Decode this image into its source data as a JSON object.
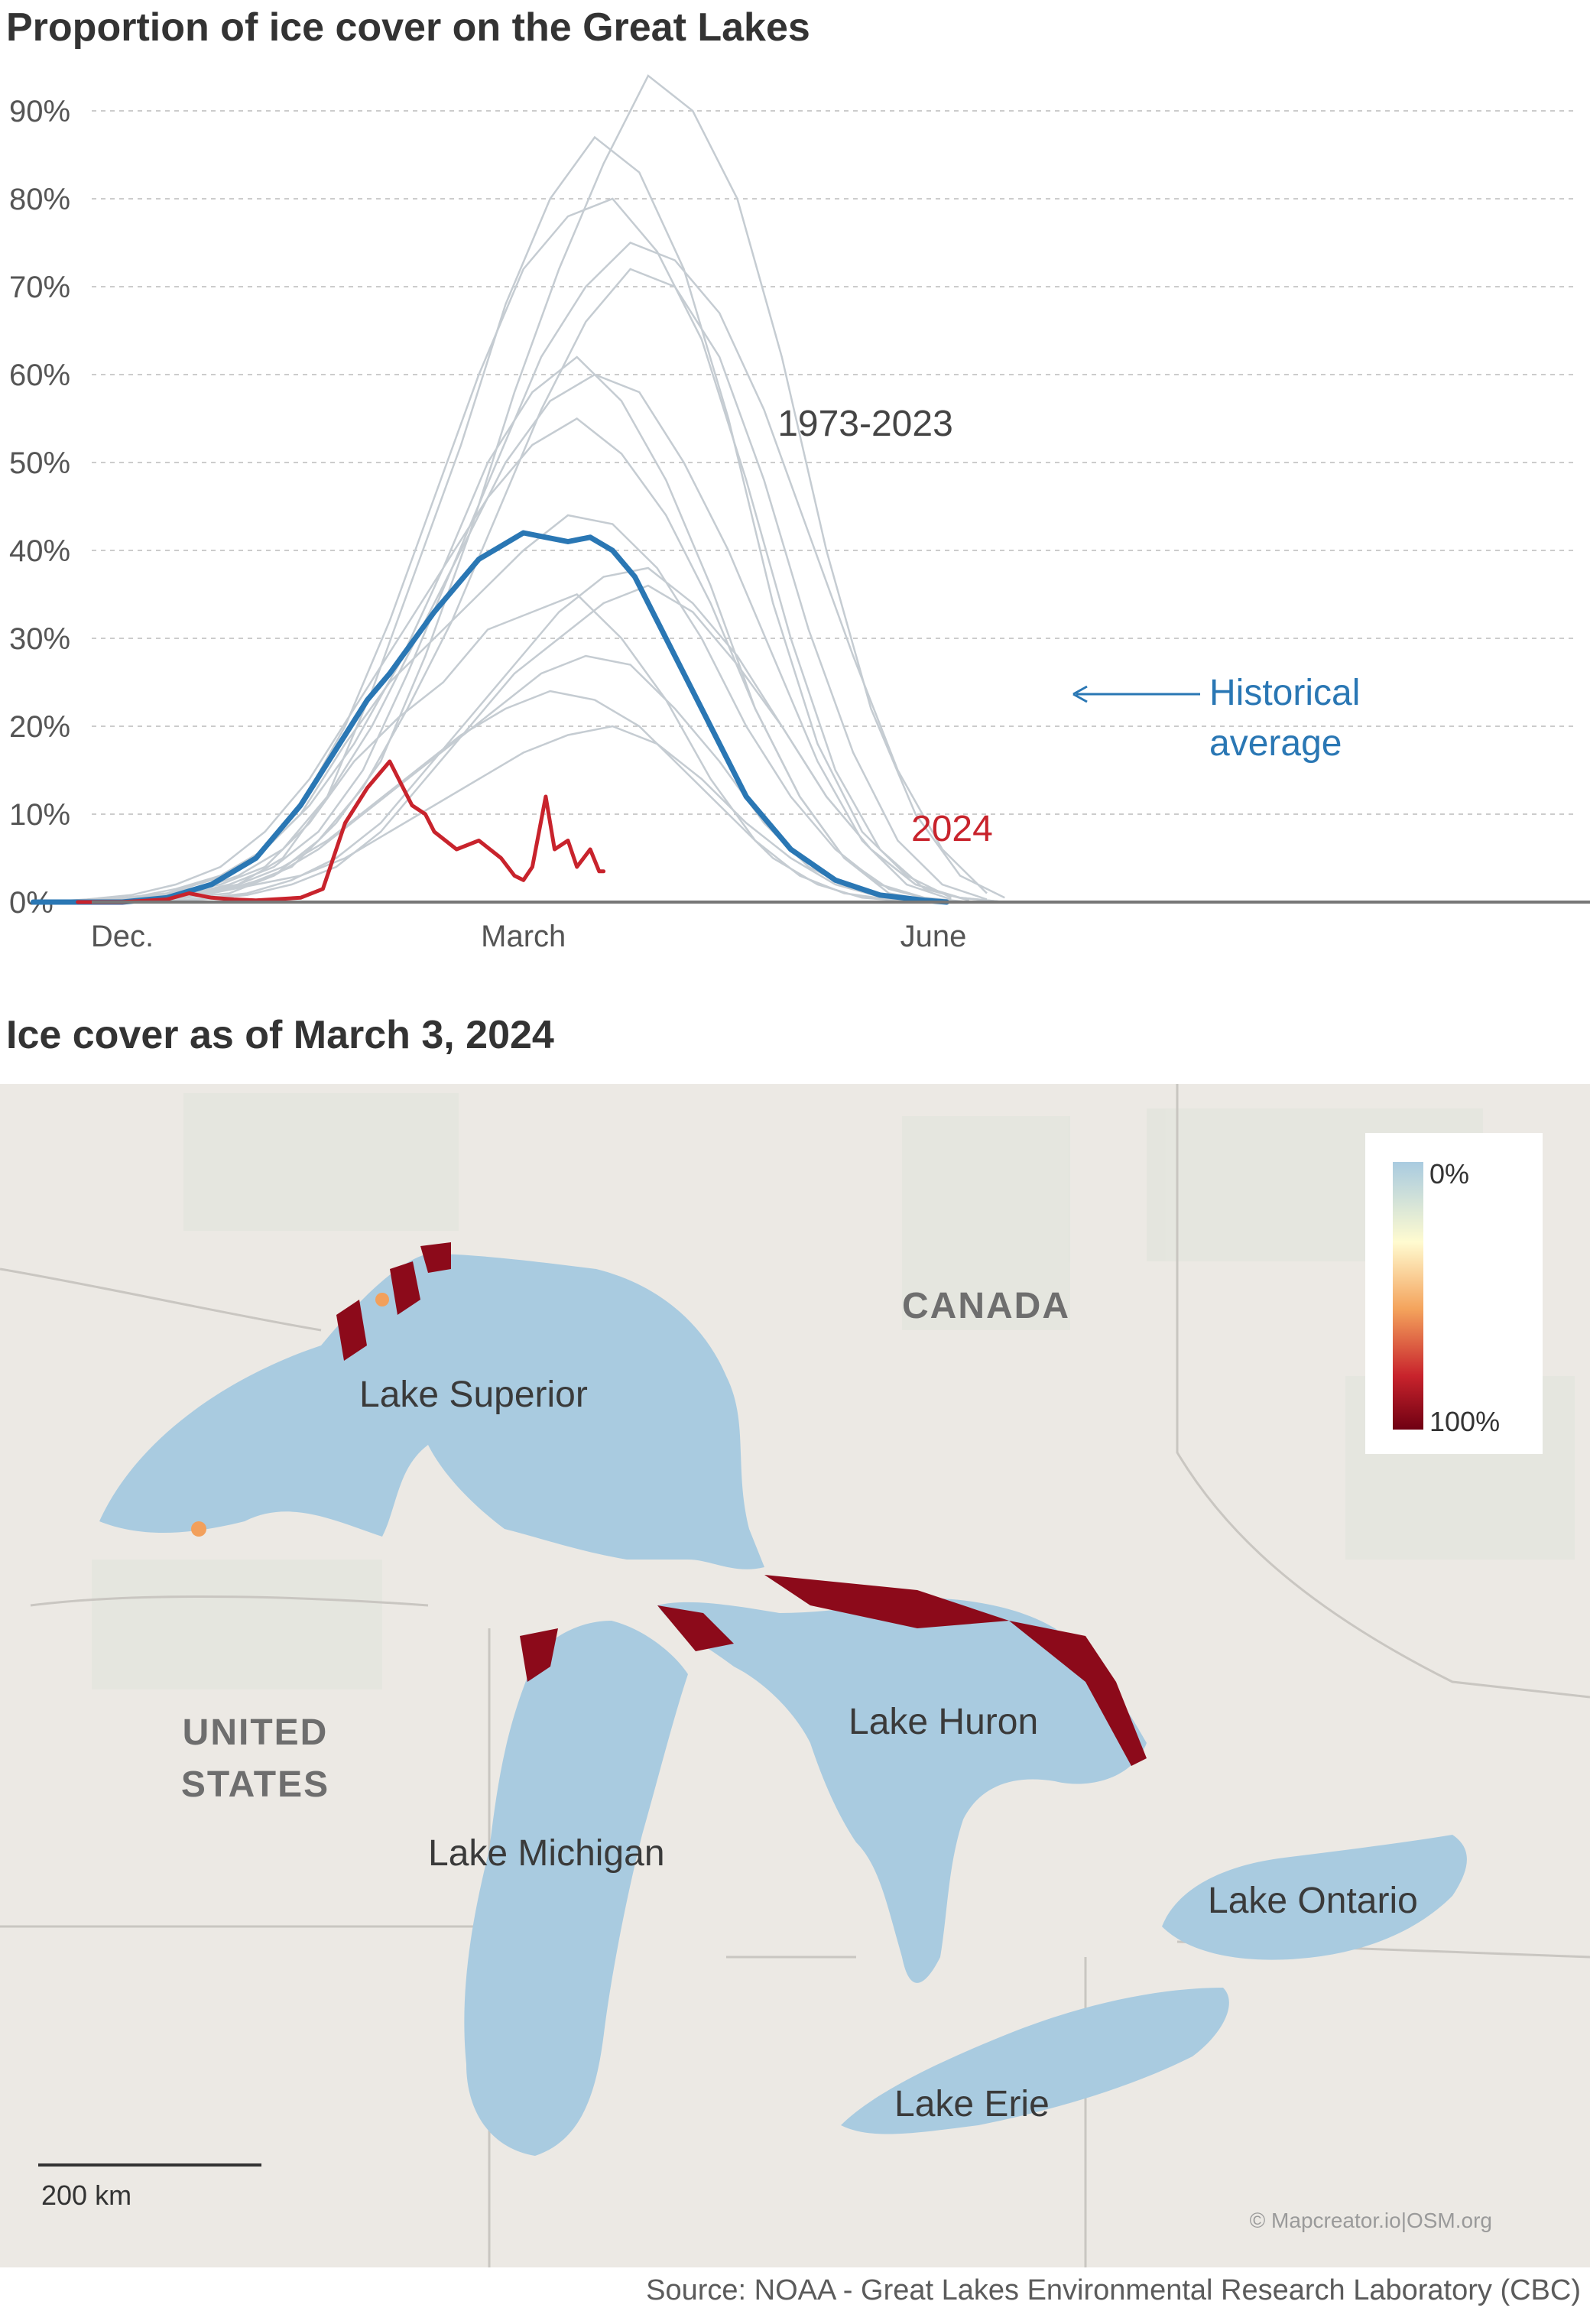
{
  "chart": {
    "title": "Proportion of ice cover on the Great Lakes",
    "y_ticks": [
      "0%",
      "10%",
      "20%",
      "30%",
      "40%",
      "50%",
      "60%",
      "70%",
      "80%",
      "90%"
    ],
    "x_ticks": [
      "Dec.",
      "March",
      "June"
    ],
    "annotation_range": "1973-2023",
    "annotation_average": [
      "Historical",
      "average"
    ],
    "annotation_current": "2024"
  },
  "colors": {
    "historical_lines": "#c5ccd2",
    "average": "#2a77b4",
    "current_year": "#c8232c",
    "grid": "#cccccc",
    "axis": "#777777",
    "lake": "#a9cbe0",
    "land": "#ece9e4",
    "ice_max": "#8c0a1a"
  },
  "chart_data": {
    "type": "line",
    "title": "Proportion of ice cover on the Great Lakes",
    "xlabel": "",
    "ylabel": "",
    "x_tick_labels": [
      "Dec.",
      "March",
      "June"
    ],
    "ylim": [
      0,
      95
    ],
    "y_unit": "%",
    "series": [
      {
        "name": "Historical average",
        "x": [
          -20,
          -10,
          0,
          10,
          20,
          30,
          40,
          50,
          55,
          60,
          70,
          80,
          90,
          95,
          100,
          105,
          110,
          115,
          120,
          130,
          140,
          150,
          160,
          170,
          180,
          185
        ],
        "values": [
          0,
          0,
          0,
          0.5,
          2,
          5,
          11,
          19,
          23,
          26,
          33,
          39,
          42,
          41.5,
          41,
          41.5,
          40,
          37,
          32,
          22,
          12,
          6,
          2.5,
          0.8,
          0.2,
          0
        ]
      },
      {
        "name": "2024",
        "x": [
          -10,
          0,
          10,
          15,
          20,
          25,
          30,
          40,
          45,
          50,
          55,
          60,
          65,
          68,
          70,
          75,
          80,
          85,
          88,
          90,
          92,
          95,
          97,
          100,
          102,
          105,
          107,
          108
        ],
        "values": [
          0,
          0,
          0.3,
          1,
          0.5,
          0.3,
          0.2,
          0.5,
          1.5,
          9,
          13,
          16,
          11,
          10,
          8,
          6,
          7,
          5,
          3,
          2.5,
          4,
          12,
          6,
          7,
          4,
          6,
          3.5,
          3.5
        ]
      }
    ],
    "background_series_note": "",
    "background_series": [
      [
        0,
        0.2,
        0.5,
        1,
        2,
        4,
        9,
        16,
        21,
        25,
        31,
        33,
        35,
        30,
        23,
        14,
        7,
        3,
        1,
        0.3,
        0
      ],
      [
        0,
        0.1,
        0.5,
        1,
        2,
        5,
        12,
        24,
        38,
        52,
        68,
        80,
        87,
        83,
        72,
        55,
        34,
        18,
        8,
        3,
        0.5
      ],
      [
        0,
        0.5,
        1,
        2,
        5,
        10,
        18,
        25,
        30,
        35,
        40,
        44,
        43,
        38,
        30,
        20,
        12,
        6,
        2,
        0.5,
        0
      ],
      [
        0,
        0.2,
        0.5,
        1,
        3,
        6,
        10,
        14,
        18,
        22,
        26,
        28,
        27,
        22,
        16,
        9,
        4,
        1.5,
        0.5,
        0,
        0
      ],
      [
        0,
        0.3,
        1,
        2,
        4,
        9,
        16,
        28,
        42,
        58,
        72,
        84,
        94,
        90,
        80,
        62,
        40,
        22,
        10,
        3,
        0.5
      ],
      [
        0,
        0.2,
        0.5,
        1.5,
        3,
        6,
        11,
        18,
        27,
        38,
        50,
        58,
        62,
        57,
        48,
        36,
        22,
        12,
        5,
        1.5,
        0.2
      ],
      [
        0,
        0.1,
        0.3,
        1,
        2,
        4,
        7,
        11,
        15,
        19,
        22,
        24,
        23,
        20,
        15,
        10,
        5,
        2,
        0.5,
        0.1,
        0
      ],
      [
        0,
        0.4,
        1,
        2.5,
        5,
        11,
        20,
        32,
        46,
        60,
        72,
        78,
        80,
        74,
        64,
        48,
        30,
        15,
        6,
        1.5,
        0.2
      ],
      [
        0,
        0.2,
        0.6,
        1.5,
        3,
        7,
        13,
        22,
        32,
        44,
        56,
        66,
        72,
        70,
        62,
        48,
        31,
        17,
        7,
        2,
        0.3
      ],
      [
        0,
        0.1,
        0.3,
        0.8,
        2,
        4,
        8,
        14,
        20,
        26,
        30,
        34,
        36,
        33,
        27,
        20,
        12,
        6,
        2,
        0.5,
        0
      ],
      [
        0,
        0.3,
        0.8,
        2,
        4,
        8,
        14,
        22,
        30,
        38,
        46,
        52,
        55,
        51,
        44,
        34,
        22,
        12,
        5,
        1,
        0.1
      ],
      [
        0,
        0.2,
        0.5,
        1.2,
        3,
        6,
        12,
        20,
        30,
        40,
        50,
        57,
        60,
        58,
        50,
        40,
        28,
        16,
        7,
        2,
        0.3
      ],
      [
        0,
        0.2,
        0.5,
        1,
        2,
        3,
        5,
        8,
        11,
        14,
        17,
        19,
        20,
        18,
        14,
        9,
        5,
        2,
        0.6,
        0.1,
        0
      ],
      [
        0,
        0.3,
        0.8,
        2,
        4,
        8,
        15,
        26,
        38,
        50,
        62,
        70,
        75,
        73,
        67,
        56,
        42,
        28,
        15,
        6,
        1
      ],
      [
        0,
        0.1,
        0.4,
        1,
        2.5,
        5,
        9,
        15,
        21,
        27,
        33,
        37,
        38,
        34,
        28,
        20,
        12,
        6,
        2,
        0.5,
        0
      ]
    ]
  },
  "map": {
    "title": "Ice cover as of March 3, 2024",
    "country_canada": "CANADA",
    "country_us": [
      "UNITED",
      "STATES"
    ],
    "lakes": [
      "Lake Superior",
      "Lake Michigan",
      "Lake Huron",
      "Lake Ontario",
      "Lake Erie"
    ],
    "legend_min": "0%",
    "legend_max": "100%",
    "scale_label": "200 km",
    "credit": "© Mapcreator.io|OSM.org"
  },
  "source": "Source: NOAA - Great Lakes Environmental Research Laboratory (CBC)"
}
